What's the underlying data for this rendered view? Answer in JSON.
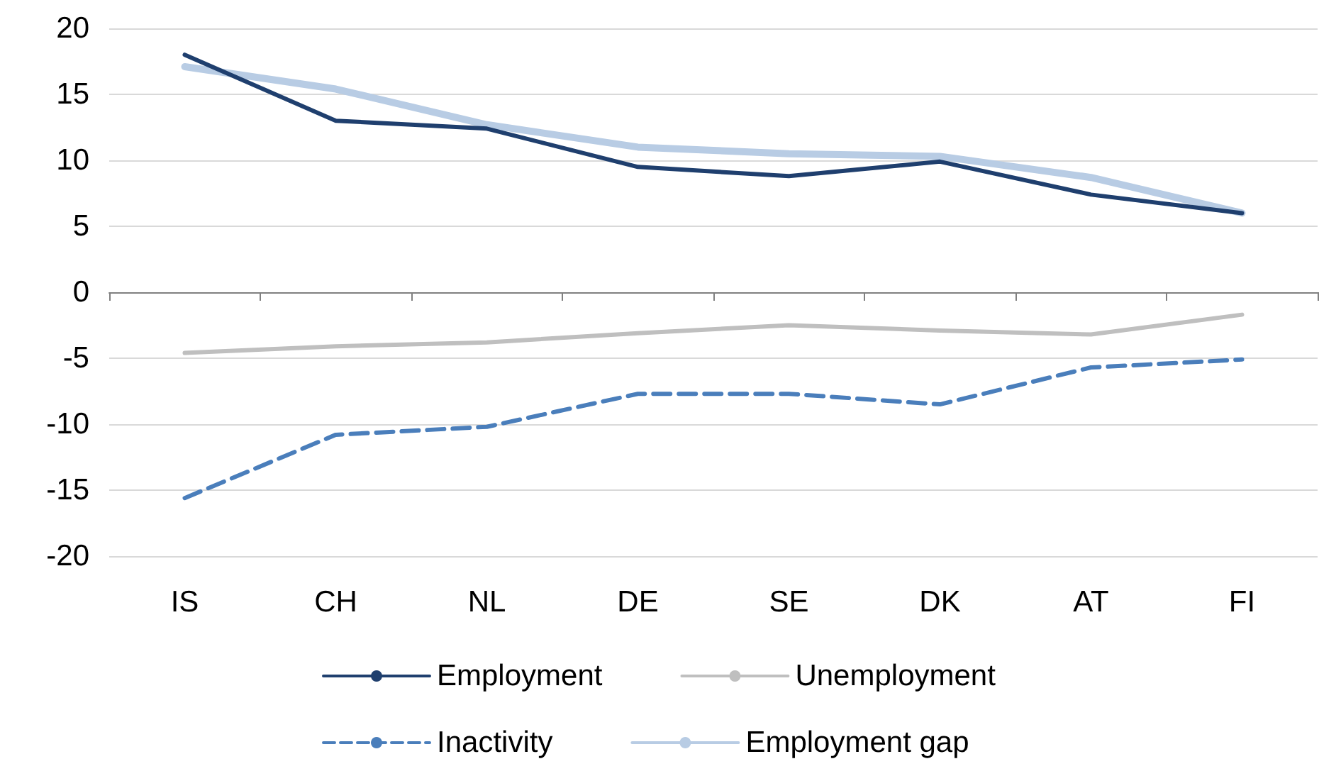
{
  "chart_data": {
    "type": "line",
    "categories": [
      "IS",
      "CH",
      "NL",
      "DE",
      "SE",
      "DK",
      "AT",
      "FI"
    ],
    "ylim": [
      -20,
      20
    ],
    "yticks": [
      -20,
      -15,
      -10,
      -5,
      0,
      5,
      10,
      15,
      20
    ],
    "grid": "y",
    "legend": "bottom",
    "marker": "none",
    "series": [
      {
        "name": "Employment",
        "color": "#1f3f6e",
        "values": [
          18.0,
          13.0,
          12.4,
          9.5,
          8.8,
          9.9,
          7.4,
          6.0
        ]
      },
      {
        "name": "Unemployment",
        "color": "#bfbfbf",
        "values": [
          -4.6,
          -4.1,
          -3.8,
          -3.1,
          -2.5,
          -2.9,
          -3.2,
          -1.7
        ]
      },
      {
        "name": "Inactivity",
        "color": "#4a7ebb",
        "line_style": "dashed",
        "values": [
          -15.6,
          -10.8,
          -10.2,
          -7.7,
          -7.7,
          -8.5,
          -5.7,
          -5.1
        ]
      },
      {
        "name": "Employment gap",
        "color": "#b8cce4",
        "values": [
          17.1,
          15.4,
          12.7,
          11.0,
          10.5,
          10.3,
          8.7,
          6.0
        ]
      }
    ]
  }
}
